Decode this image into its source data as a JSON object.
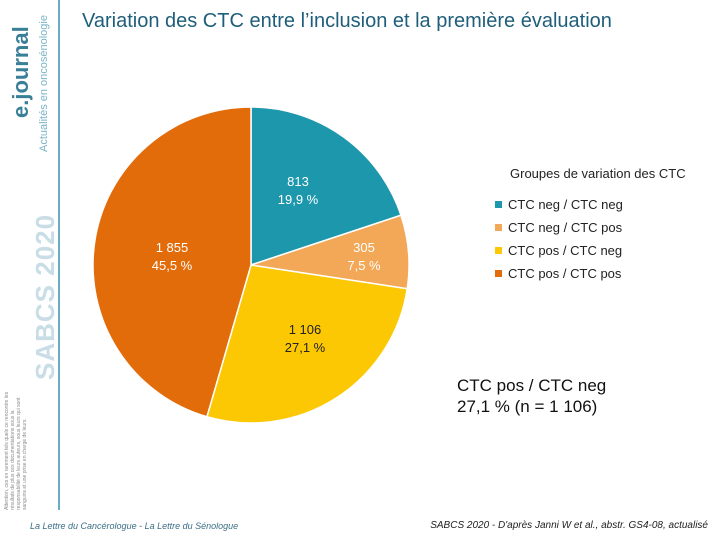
{
  "header": {
    "title": "Variation des CTC entre l’inclusion et la première évaluation"
  },
  "sidebar": {
    "brand": "e.journal",
    "tagline": "Actualités en oncosénologie",
    "event": "SABCS 2020",
    "legal": "Attention, ces en rarement tels quels ce rencontre les résultats de plus ces documentations sous la responsabilité de leurs auteurs, sous leurs qui sont sanguins et une prise en charge de leurs."
  },
  "chart_data": {
    "type": "pie",
    "title": "",
    "legend_title": "Groupes de variation des CTC",
    "legend_position": "right",
    "slices": [
      {
        "name": "CTC neg / CTC neg",
        "count": 813,
        "count_label": "813",
        "percent": 19.9,
        "percent_label": "19,9 %",
        "color": "#1d97ac"
      },
      {
        "name": "CTC neg / CTC pos",
        "count": 305,
        "count_label": "305",
        "percent": 7.5,
        "percent_label": "7,5 %",
        "color": "#f2a857"
      },
      {
        "name": "CTC pos / CTC neg",
        "count": 1106,
        "count_label": "1 106",
        "percent": 27.1,
        "percent_label": "27,1 %",
        "color": "#fcc803"
      },
      {
        "name": "CTC pos / CTC pos",
        "count": 1855,
        "count_label": "1 855",
        "percent": 45.5,
        "percent_label": "45,5 %",
        "color": "#e36c0a"
      }
    ]
  },
  "callout": {
    "line1": "CTC pos / CTC neg",
    "line2": "27,1 % (n = 1 106)"
  },
  "footer": {
    "left": "La Lettre du Cancérologue - La Lettre du Sénologue",
    "right": "SABCS 2020 - D'après Janni W et al., abstr. GS4-08, actualisé"
  }
}
